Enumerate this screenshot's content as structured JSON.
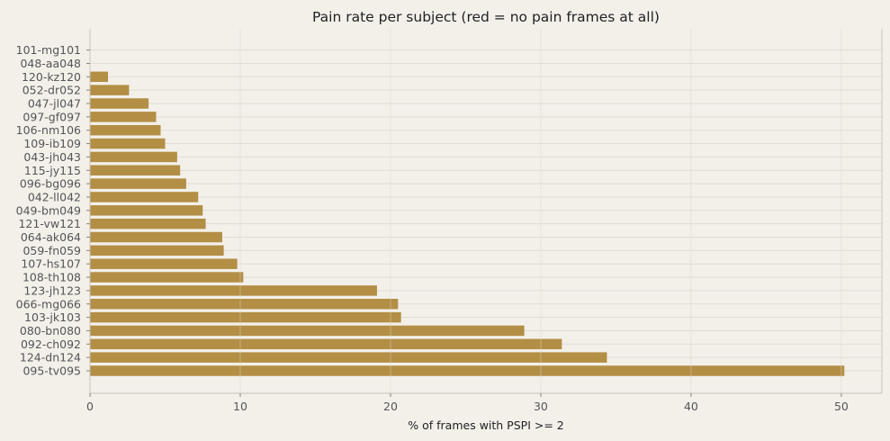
{
  "chart_data": {
    "type": "bar",
    "orientation": "horizontal",
    "title": "Pain rate per subject  (red = no pain frames at all)",
    "xlabel": "% of frames with PSPI >= 2",
    "ylabel": "",
    "xlim": [
      0,
      52.7
    ],
    "xticks": [
      0,
      10,
      20,
      30,
      40,
      50
    ],
    "grid": true,
    "bar_color": "#b38e45",
    "zero_color": "#d9534f",
    "categories": [
      "095-tv095",
      "124-dn124",
      "092-ch092",
      "080-bn080",
      "103-jk103",
      "066-mg066",
      "123-jh123",
      "108-th108",
      "107-hs107",
      "059-fn059",
      "064-ak064",
      "121-vw121",
      "049-bm049",
      "042-ll042",
      "096-bg096",
      "115-jy115",
      "043-jh043",
      "109-ib109",
      "106-nm106",
      "097-gf097",
      "047-jl047",
      "052-dr052",
      "120-kz120",
      "048-aa048",
      "101-mg101"
    ],
    "values": [
      50.2,
      34.4,
      31.4,
      28.9,
      20.7,
      20.5,
      19.1,
      10.2,
      9.8,
      8.9,
      8.8,
      7.7,
      7.5,
      7.2,
      6.4,
      6.0,
      5.8,
      5.0,
      4.7,
      4.4,
      3.9,
      2.6,
      1.2,
      0.0,
      0.0
    ]
  }
}
